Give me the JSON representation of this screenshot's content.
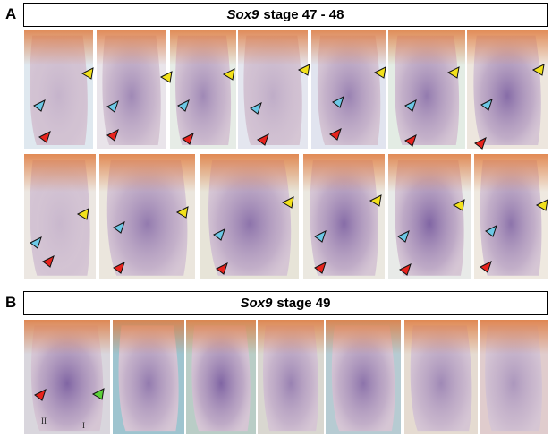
{
  "panel_a": {
    "letter": "A",
    "title_gene": "Sox9",
    "title_rest": "stage 47 - 48"
  },
  "panel_b": {
    "letter": "B",
    "title_gene": "Sox9",
    "title_rest": "stage 49",
    "digit_labels": [
      "II",
      "I"
    ]
  },
  "arrow_colors": {
    "yellow": "#f2e11b",
    "cyan": "#6cc8e6",
    "red": "#e8231d",
    "green": "#5cd13a"
  },
  "stain_color": "#5a3a8e"
}
